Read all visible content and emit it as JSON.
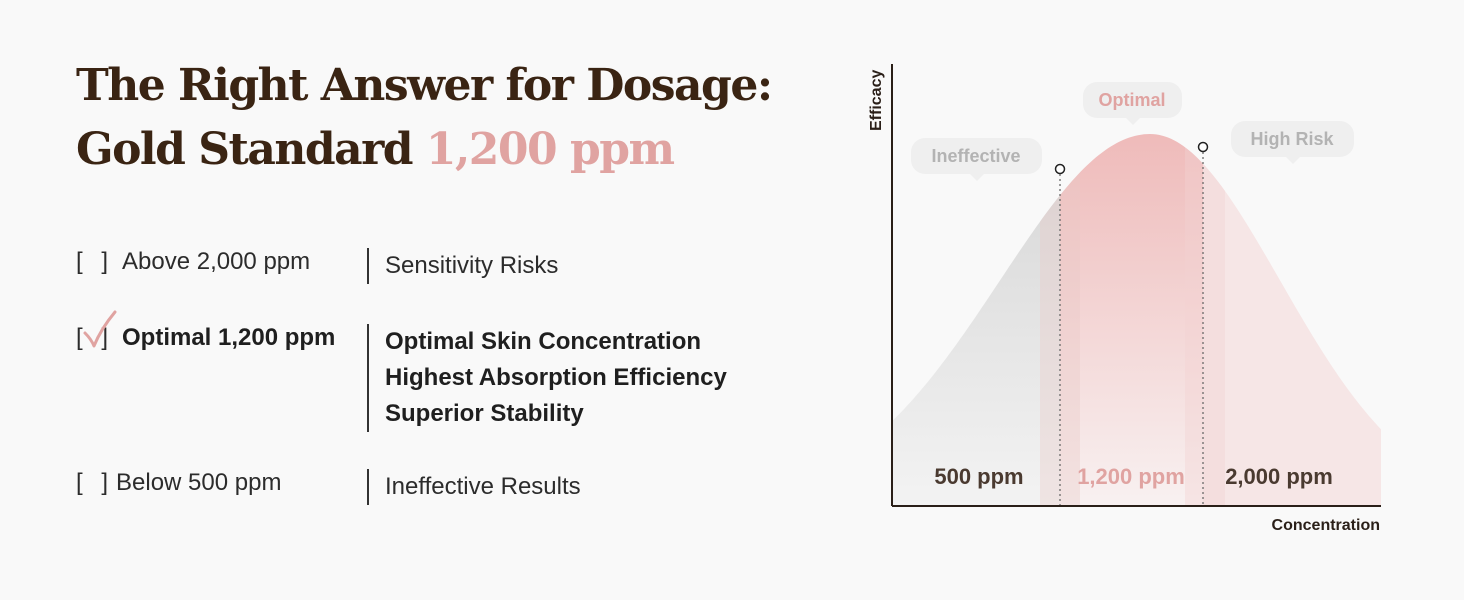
{
  "heading": {
    "line1": "The Right Answer for Dosage:",
    "line2_prefix": "Gold Standard ",
    "line2_accent": "1,200 ppm"
  },
  "colors": {
    "brown": "#3a2413",
    "accent": "#e0a3a1",
    "gray_fill": "#d6d6d6",
    "pink_fill": "#eeb3b2",
    "bubble_bg": "#efefef"
  },
  "dosage_list": [
    {
      "checkbox": "[   ]",
      "checked": false,
      "label": "Above 2,000 ppm",
      "descriptions": [
        "Sensitivity Risks"
      ]
    },
    {
      "checkbox": "[   ]",
      "checked": true,
      "label": "Optimal 1,200 ppm",
      "descriptions": [
        "Optimal Skin Concentration",
        "Highest Absorption Efficiency",
        "Superior Stability"
      ]
    },
    {
      "checkbox": "[   ]",
      "checked": false,
      "label": "Below 500 ppm",
      "descriptions": [
        "Ineffective Results"
      ]
    }
  ],
  "chart_data": {
    "type": "area",
    "xlabel": "Concentration",
    "ylabel": "Efficacy",
    "curve": "bell",
    "grid": false,
    "regions": [
      {
        "name": "Ineffective",
        "tick_label": "500 ppm",
        "color": "#bdbdbd",
        "highlight": false
      },
      {
        "name": "Optimal",
        "tick_label": "1,200 ppm",
        "color": "#e0a3a1",
        "highlight": true
      },
      {
        "name": "High Risk",
        "tick_label": "2,000 ppm",
        "color": "#bdbdbd",
        "highlight": false
      }
    ],
    "markers": [
      "500 ppm",
      "2,000 ppm"
    ]
  }
}
